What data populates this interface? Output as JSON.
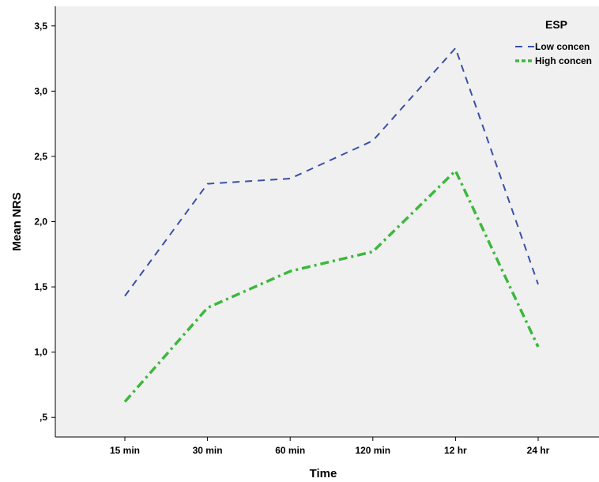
{
  "chart_data": {
    "type": "line",
    "xlabel": "Time",
    "ylabel": "Mean NRS",
    "categories": [
      "15 min",
      "30 min",
      "60 min",
      "120 min",
      "12 hr",
      "24 hr"
    ],
    "yticks": [
      0.5,
      1.0,
      1.5,
      2.0,
      2.5,
      3.0,
      3.5
    ],
    "ytick_labels": [
      ",5",
      "1,0",
      "1,5",
      "2,0",
      "2,5",
      "3,0",
      "3,5"
    ],
    "ylim": [
      0.35,
      3.65
    ],
    "grid": false,
    "legend": {
      "title": "ESP",
      "placement": "top-right",
      "entries": [
        "Low concen",
        "High concen"
      ]
    },
    "series": [
      {
        "name": "Low concen",
        "values": [
          1.43,
          2.29,
          2.33,
          2.62,
          3.33,
          1.52
        ],
        "color": "#3a4fa8",
        "style": "dashed"
      },
      {
        "name": "High concen",
        "values": [
          0.62,
          1.34,
          1.62,
          1.77,
          2.39,
          1.04
        ],
        "color": "#3cb83c",
        "style": "dash-dot"
      }
    ],
    "background": "#f0f0f0"
  }
}
